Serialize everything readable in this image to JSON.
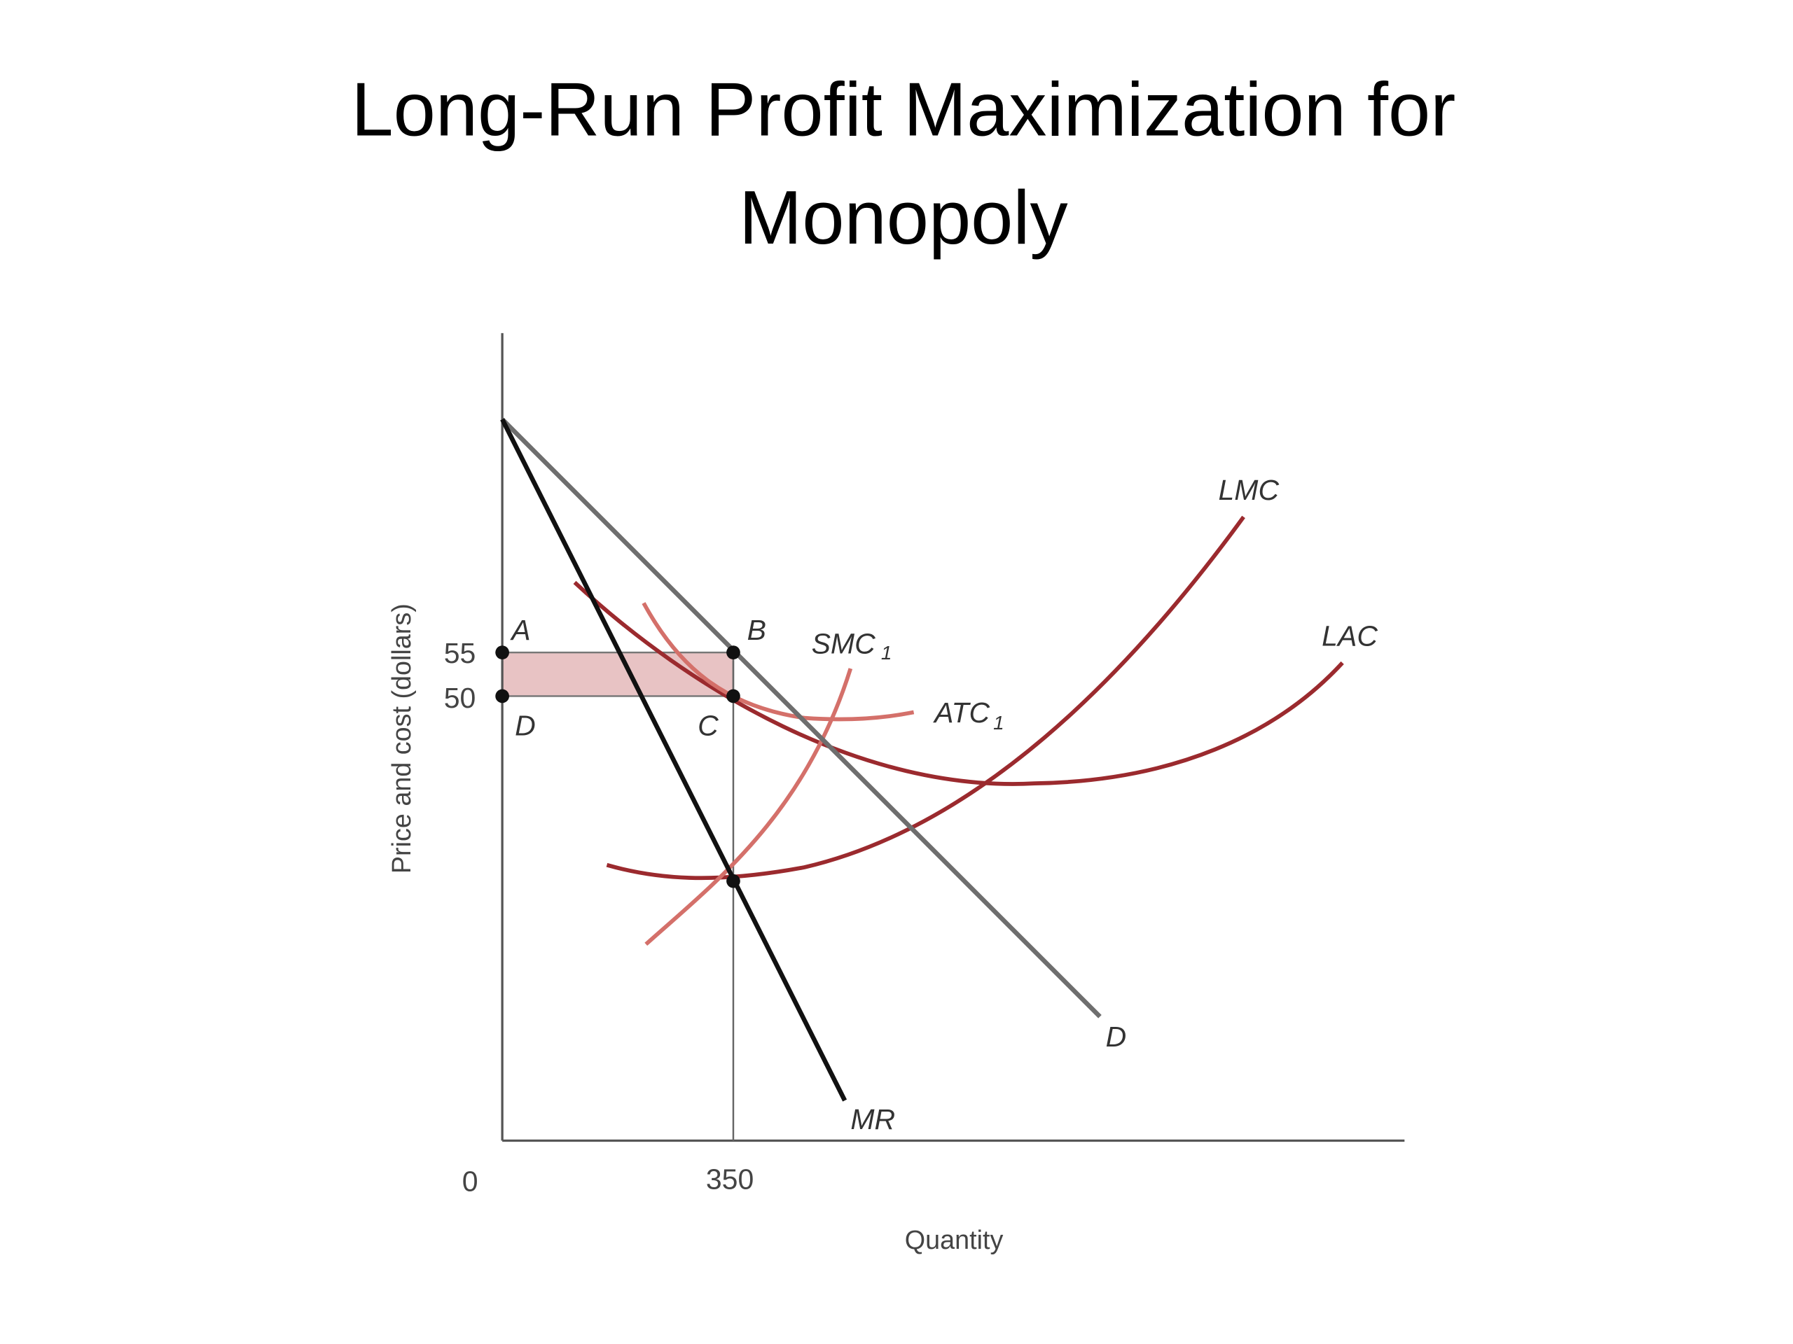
{
  "title": [
    "Long-Run Profit Maximization  for",
    "Monopoly"
  ],
  "y_axis_label": "Price and cost (dollars)",
  "x_axis_label": "Quantity",
  "y_ticks": [
    "55",
    "50"
  ],
  "x_ticks": [
    "0",
    "350"
  ],
  "points": [
    "A",
    "B",
    "C",
    "D"
  ],
  "curves": {
    "lmc": "LMC",
    "lac": "LAC",
    "smc": {
      "name": "SMC",
      "sub": "1"
    },
    "atc": {
      "name": "ATC",
      "sub": "1"
    },
    "demand": "D",
    "mr": "MR"
  }
}
